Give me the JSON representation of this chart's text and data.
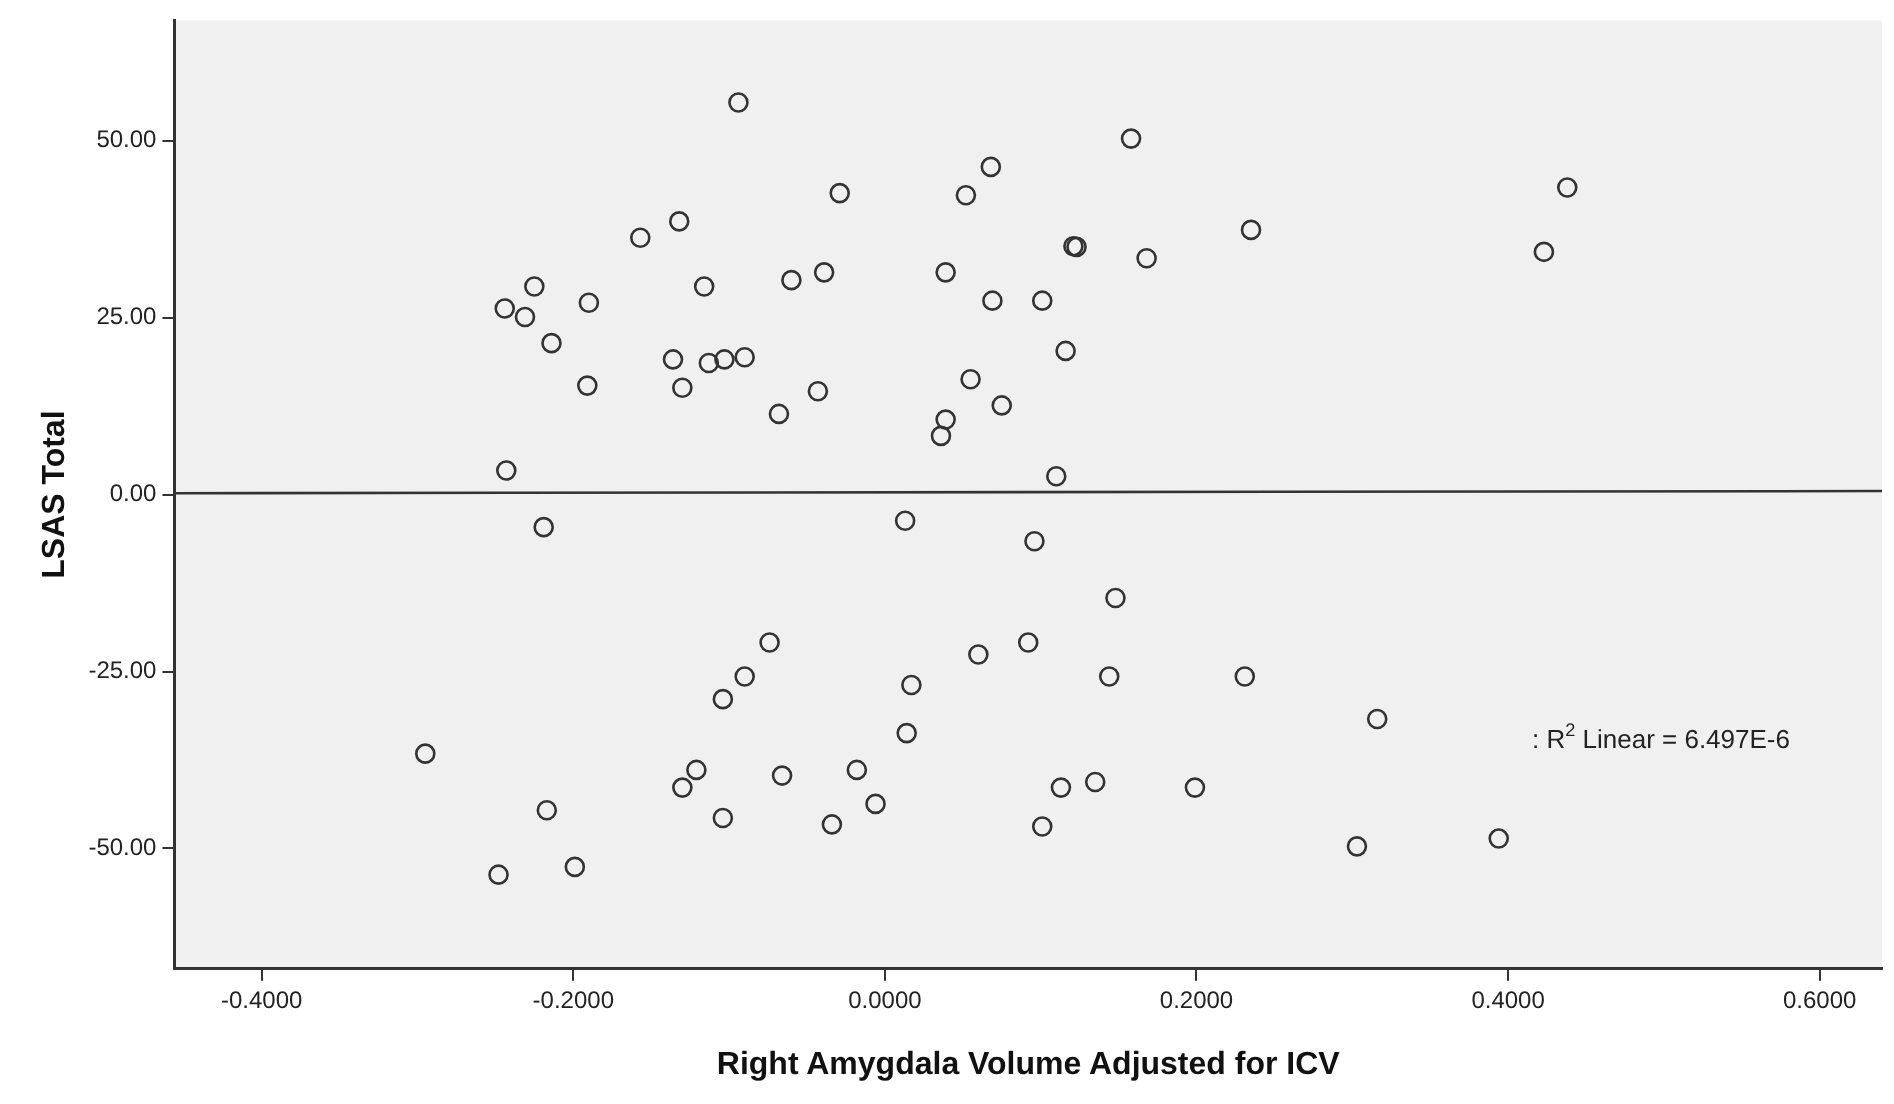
{
  "chart_data": {
    "type": "scatter",
    "xlabel": "Right Amygdala Volume Adjusted for ICV",
    "ylabel": "LSAS Total",
    "xlim": [
      -0.456,
      0.64
    ],
    "ylim": [
      -67,
      67
    ],
    "xticks": [
      {
        "value": -0.4,
        "label": "-0.4000"
      },
      {
        "value": -0.2,
        "label": "-0.2000"
      },
      {
        "value": 0,
        "label": "0.0000"
      },
      {
        "value": 0.2,
        "label": "0.2000"
      },
      {
        "value": 0.4,
        "label": "0.4000"
      },
      {
        "value": 0.6,
        "label": "0.6000"
      }
    ],
    "yticks": [
      {
        "value": -50,
        "label": "-50.00"
      },
      {
        "value": -25,
        "label": "-25.00"
      },
      {
        "value": 0,
        "label": "0.00"
      },
      {
        "value": 25,
        "label": "25.00"
      },
      {
        "value": 50,
        "label": "50.00"
      }
    ],
    "grid": false,
    "legend": false,
    "marker": "circle",
    "annotations": [
      ": R$^{2}$ Linear = 6.497E-6"
    ],
    "series": [
      {
        "type": "scatter",
        "color": "#333333",
        "x": [
          -0.094,
          0.158,
          0.068,
          0.052,
          -0.029,
          0.438,
          0.235,
          -0.157,
          -0.132,
          0.121,
          0.123,
          0.168,
          0.423,
          0.039,
          -0.039,
          -0.06,
          -0.116,
          -0.225,
          -0.244,
          -0.231,
          -0.19,
          -0.214,
          -0.191,
          -0.136,
          -0.13,
          -0.113,
          -0.103,
          -0.09,
          -0.068,
          -0.043,
          0.069,
          0.101,
          0.116,
          0.055,
          0.075,
          0.039,
          0.036,
          0.11,
          -0.243,
          -0.219,
          0.013,
          0.096,
          0.148,
          -0.074,
          0.092,
          0.06,
          -0.09,
          0.144,
          0.231,
          0.017,
          -0.104,
          0.014,
          -0.121,
          -0.13,
          -0.066,
          -0.018,
          0.113,
          0.135,
          0.199,
          -0.104,
          -0.034,
          -0.006,
          0.101,
          -0.295,
          -0.217,
          -0.248,
          -0.199,
          0.316,
          0.303,
          0.394
        ],
        "values": [
          55.4,
          50.3,
          46.3,
          42.3,
          42.6,
          43.4,
          37.4,
          36.3,
          38.6,
          35.1,
          35,
          33.4,
          34.3,
          31.4,
          31.4,
          30.3,
          29.4,
          29.4,
          26.3,
          25.1,
          27.1,
          21.4,
          15.4,
          19.1,
          15.1,
          18.6,
          19.1,
          19.4,
          11.4,
          14.6,
          27.4,
          27.4,
          20.3,
          16.3,
          12.6,
          10.6,
          8.3,
          2.6,
          3.4,
          -4.6,
          -3.7,
          -6.6,
          -14.6,
          -20.9,
          -20.9,
          -22.6,
          -25.7,
          -25.7,
          -25.7,
          -26.9,
          -28.9,
          -33.7,
          -38.9,
          -41.4,
          -39.7,
          -38.9,
          -41.4,
          -40.6,
          -41.4,
          -45.7,
          -46.6,
          -43.7,
          -46.9,
          -36.6,
          -44.6,
          -53.7,
          -52.6,
          -31.7,
          -49.7,
          -48.6
        ]
      },
      {
        "type": "line",
        "color": "#333333",
        "marker": "none",
        "line_style": "solid",
        "x": [
          -0.456,
          0.64
        ],
        "values": [
          0.2,
          0.5
        ]
      }
    ]
  }
}
